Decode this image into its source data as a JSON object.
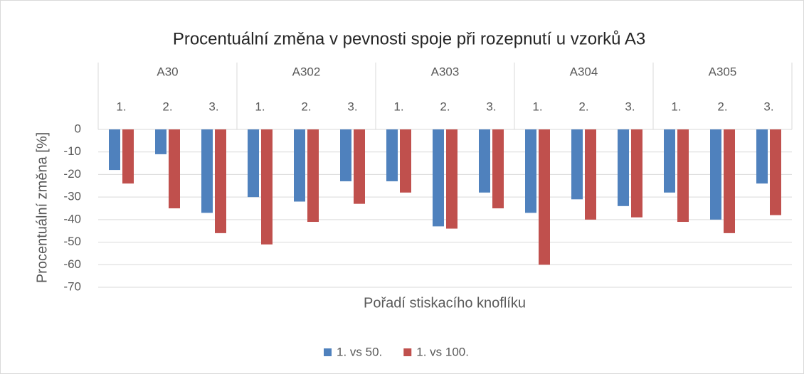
{
  "chart_data": {
    "type": "bar",
    "title": "Procentuální změna v pevnosti spoje při rozepnutí u vzorků A3",
    "x_label": "Pořadí stiskacího knoflíku",
    "y_label": "Procentuální změna [%]",
    "groups": [
      "A30",
      "A302",
      "A303",
      "A304",
      "A305"
    ],
    "categories": [
      "1.",
      "2.",
      "3.",
      "1.",
      "2.",
      "3.",
      "1.",
      "2.",
      "3.",
      "1.",
      "2.",
      "3.",
      "1.",
      "2.",
      "3."
    ],
    "series": [
      {
        "name": "1. vs 50.",
        "color": "#4f81bd",
        "values": [
          -18,
          -11,
          -37,
          -30,
          -32,
          -23,
          -23,
          -43,
          -28,
          -37,
          -31,
          -34,
          -28,
          -40,
          -24
        ]
      },
      {
        "name": "1. vs 100.",
        "color": "#c0504d",
        "values": [
          -24,
          -35,
          -46,
          -51,
          -41,
          -33,
          -28,
          -44,
          -35,
          -60,
          -40,
          -39,
          -41,
          -46,
          -38
        ]
      }
    ],
    "ylim": [
      -70,
      0
    ],
    "yticks": [
      0,
      -10,
      -20,
      -30,
      -40,
      -50,
      -60,
      -70
    ],
    "grid": true,
    "legend": "bottom"
  }
}
